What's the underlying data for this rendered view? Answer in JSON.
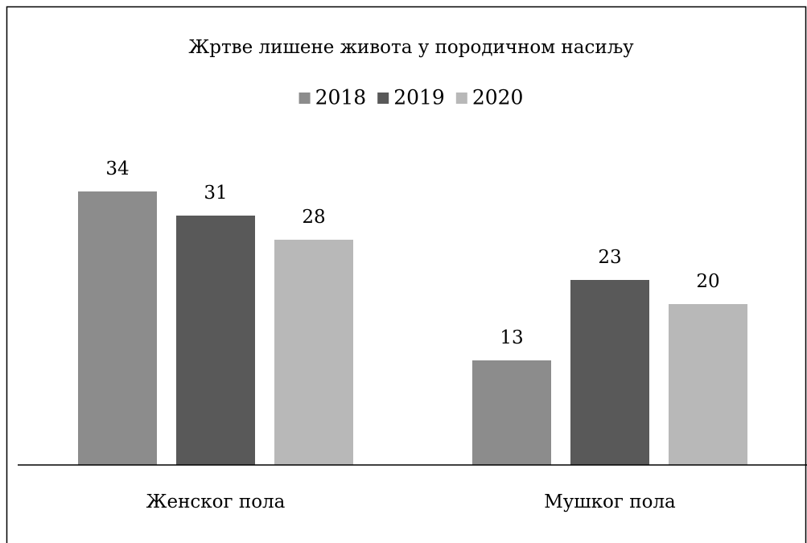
{
  "chart_data": {
    "type": "bar",
    "title": "Жртве лишене живота у породичном насиљу",
    "categories": [
      "Женског пола",
      "Мушког пола"
    ],
    "series": [
      {
        "name": "2018",
        "color": "#8c8c8c",
        "values": [
          34,
          13
        ]
      },
      {
        "name": "2019",
        "color": "#595959",
        "values": [
          31,
          23
        ]
      },
      {
        "name": "2020",
        "color": "#b8b8b8",
        "values": [
          28,
          20
        ]
      }
    ],
    "legend": "top",
    "data_labels": true
  }
}
